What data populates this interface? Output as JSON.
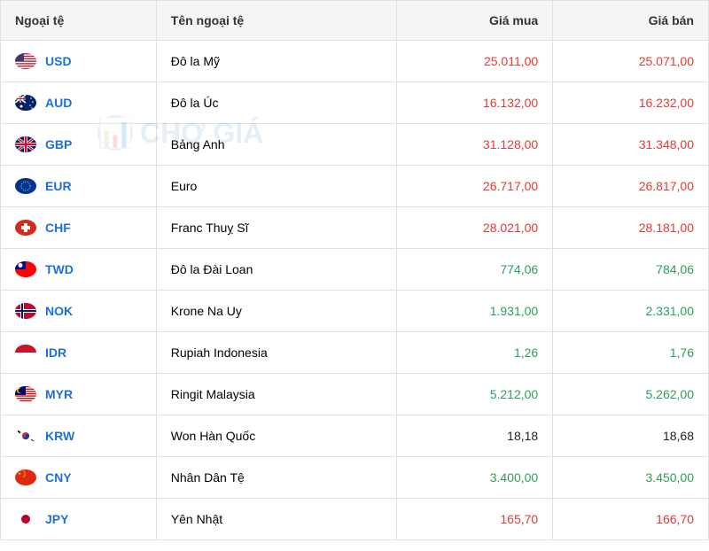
{
  "headers": {
    "currency": "Ngoại tệ",
    "name": "Tên ngoại tệ",
    "buy": "Giá mua",
    "sell": "Giá bán"
  },
  "watermark": "CHỢ GIÁ",
  "value_colors": {
    "red": "#e53935",
    "green": "#2e9e5b",
    "black": "#222222"
  },
  "rows": [
    {
      "code": "USD",
      "name": "Đô la Mỹ",
      "buy": "25.011,00",
      "sell": "25.071,00",
      "color": "red",
      "flag": "usd"
    },
    {
      "code": "AUD",
      "name": "Đô la Úc",
      "buy": "16.132,00",
      "sell": "16.232,00",
      "color": "red",
      "flag": "aud"
    },
    {
      "code": "GBP",
      "name": "Bảng Anh",
      "buy": "31.128,00",
      "sell": "31.348,00",
      "color": "red",
      "flag": "gbp"
    },
    {
      "code": "EUR",
      "name": "Euro",
      "buy": "26.717,00",
      "sell": "26.817,00",
      "color": "red",
      "flag": "eur"
    },
    {
      "code": "CHF",
      "name": "Franc Thuỵ Sĩ",
      "buy": "28.021,00",
      "sell": "28.181,00",
      "color": "red",
      "flag": "chf"
    },
    {
      "code": "TWD",
      "name": "Đô la Đài Loan",
      "buy": "774,06",
      "sell": "784,06",
      "color": "green",
      "flag": "twd"
    },
    {
      "code": "NOK",
      "name": "Krone Na Uy",
      "buy": "1.931,00",
      "sell": "2.331,00",
      "color": "green",
      "flag": "nok"
    },
    {
      "code": "IDR",
      "name": "Rupiah Indonesia",
      "buy": "1,26",
      "sell": "1,76",
      "color": "green",
      "flag": "idr"
    },
    {
      "code": "MYR",
      "name": "Ringit Malaysia",
      "buy": "5.212,00",
      "sell": "5.262,00",
      "color": "green",
      "flag": "myr"
    },
    {
      "code": "KRW",
      "name": "Won Hàn Quốc",
      "buy": "18,18",
      "sell": "18,68",
      "color": "black",
      "flag": "krw"
    },
    {
      "code": "CNY",
      "name": "Nhân Dân Tệ",
      "buy": "3.400,00",
      "sell": "3.450,00",
      "color": "green",
      "flag": "cny"
    },
    {
      "code": "JPY",
      "name": "Yên Nhật",
      "buy": "165,70",
      "sell": "166,70",
      "color": "red",
      "flag": "jpy"
    }
  ],
  "flag_svgs": {
    "usd": "<rect width='24' height='18' fill='#b22234'/><rect y='1.4' width='24' height='1.4' fill='#fff'/><rect y='4.2' width='24' height='1.4' fill='#fff'/><rect y='7' width='24' height='1.4' fill='#fff'/><rect y='9.8' width='24' height='1.4' fill='#fff'/><rect y='12.6' width='24' height='1.4' fill='#fff'/><rect y='15.4' width='24' height='1.4' fill='#fff'/><rect width='10' height='9' fill='#3c3b6e'/>",
    "aud": "<rect width='24' height='18' fill='#012169'/><rect width='12' height='9' fill='#012169'/><path d='M0,0 L12,9 M12,0 L0,9' stroke='#fff' stroke-width='1.5'/><path d='M6,0 V9 M0,4.5 H12' stroke='#fff' stroke-width='2'/><path d='M6,0 V9 M0,4.5 H12' stroke='#c8102e' stroke-width='1'/><circle cx='7' cy='13' r='1.5' fill='#fff'/><circle cx='18' cy='4' r='0.8' fill='#fff'/><circle cx='20' cy='8' r='0.8' fill='#fff'/><circle cx='17' cy='12' r='0.8' fill='#fff'/><circle cx='19' cy='15' r='0.8' fill='#fff'/>",
    "gbp": "<rect width='24' height='18' fill='#012169'/><path d='M0,0 L24,18 M24,0 L0,18' stroke='#fff' stroke-width='3'/><path d='M0,0 L24,18 M24,0 L0,18' stroke='#c8102e' stroke-width='1.5'/><path d='M12,0 V18 M0,9 H24' stroke='#fff' stroke-width='4'/><path d='M12,0 V18 M0,9 H24' stroke='#c8102e' stroke-width='2.5'/>",
    "eur": "<rect width='24' height='18' fill='#003399'/><circle cx='12' cy='9' r='5' fill='none' stroke='#ffcc00' stroke-width='1' stroke-dasharray='1,1.5'/>",
    "chf": "<rect width='24' height='18' fill='#d52b1e'/><rect x='10' y='4' width='4' height='10' fill='#fff'/><rect x='7' y='7' width='10' height='4' fill='#fff'/>",
    "twd": "<rect width='24' height='18' fill='#fe0000'/><rect width='12' height='9' fill='#000095'/><circle cx='6' cy='4.5' r='2.5' fill='#fff'/>",
    "nok": "<rect width='24' height='18' fill='#ba0c2f'/><rect x='6' width='4' height='18' fill='#fff'/><rect y='7' width='24' height='4' fill='#fff'/><rect x='7' width='2' height='18' fill='#00205b'/><rect y='8' width='24' height='2' fill='#00205b'/>",
    "idr": "<rect width='24' height='9' fill='#ce1126'/><rect y='9' width='24' height='9' fill='#fff'/>",
    "myr": "<rect width='24' height='18' fill='#cc0001'/><rect y='1.3' width='24' height='1.3' fill='#fff'/><rect y='3.9' width='24' height='1.3' fill='#fff'/><rect y='6.5' width='24' height='1.3' fill='#fff'/><rect y='9.1' width='24' height='1.3' fill='#fff'/><rect y='11.7' width='24' height='1.3' fill='#fff'/><rect y='14.3' width='24' height='1.3' fill='#fff'/><rect y='16.9' width='24' height='1.3' fill='#fff'/><rect width='12' height='10' fill='#010066'/><circle cx='5' cy='5' r='3' fill='#ffcc00'/><circle cx='6' cy='5' r='2.5' fill='#010066'/>",
    "krw": "<rect width='24' height='18' fill='#fff'/><circle cx='12' cy='9' r='4' fill='#cd2e3a'/><path d='M8,9 a4,4 0 0,0 8,0' fill='#0047a0'/><circle cx='10' cy='9' r='2' fill='#cd2e3a'/><circle cx='14' cy='9' r='2' fill='#0047a0'/><g stroke='#000' stroke-width='0.8'><line x1='3' y1='3' x2='6' y2='5'/><line x1='3' y1='4' x2='6' y2='6'/><line x1='18' y1='13' x2='21' y2='15'/></g>",
    "cny": "<rect width='24' height='18' fill='#de2910'/><polygon points='5,3 6,6 3,4 7,4 4,6' fill='#ffde00'/><circle cx='10' cy='2' r='0.7' fill='#ffde00'/><circle cx='11' cy='4' r='0.7' fill='#ffde00'/><circle cx='11' cy='6' r='0.7' fill='#ffde00'/><circle cx='10' cy='8' r='0.7' fill='#ffde00'/>",
    "jpy": "<rect width='24' height='18' fill='#fff'/><circle cx='12' cy='9' r='5' fill='#bc002d'/>"
  }
}
